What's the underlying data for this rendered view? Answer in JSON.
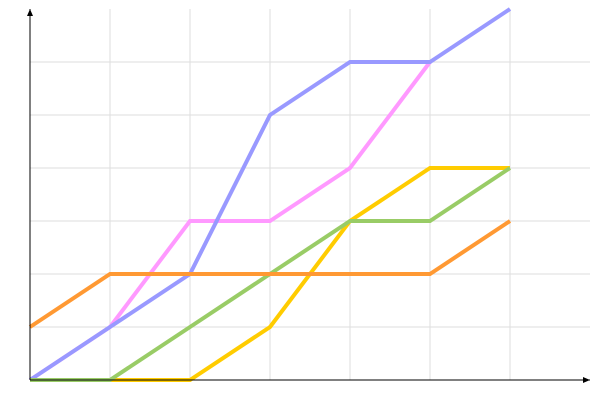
{
  "chart_data": {
    "type": "line",
    "title": "",
    "xlabel": "",
    "ylabel": "",
    "x": [
      0,
      1,
      2,
      3,
      4,
      5,
      6
    ],
    "xlim": [
      0,
      7
    ],
    "ylim": [
      0,
      7
    ],
    "grid": true,
    "legend": "none",
    "series": [
      {
        "color": "#ff99ff",
        "values": [
          0,
          1,
          3,
          3,
          4,
          6,
          null
        ]
      },
      {
        "color": "#9999ff",
        "values": [
          0,
          1,
          2,
          5,
          6,
          6,
          7
        ]
      },
      {
        "color": "#ffcc00",
        "values": [
          0,
          0,
          0,
          1,
          3,
          4,
          4
        ]
      },
      {
        "color": "#99cc66",
        "values": [
          0,
          0,
          1,
          2,
          3,
          3,
          4
        ]
      },
      {
        "color": "#ff9933",
        "values": [
          1,
          2,
          2,
          2,
          2,
          2,
          3
        ]
      }
    ]
  }
}
